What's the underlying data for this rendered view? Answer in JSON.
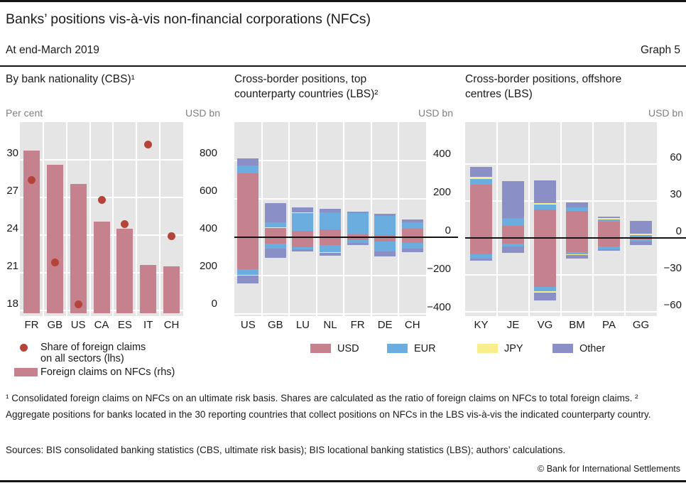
{
  "header": {
    "title": "Banks’ positions vis-à-vis non-financial corporations (NFCs)",
    "subtitle": "At end-March 2019",
    "graph_label": "Graph 5"
  },
  "colors": {
    "usd": "#c6818f",
    "eur": "#6cade0",
    "jpy": "#f8ee8d",
    "other": "#8a8fc6",
    "dot": "#b54438",
    "plot_bg": "#e5e5e5",
    "grid": "#ffffff",
    "axis_label_gray": "#7f7f7f",
    "rule": "#141414"
  },
  "panels": [
    {
      "title_lines": [
        "By bank nationality (CBS)¹",
        ""
      ],
      "unit_left": "Per cent",
      "unit_right": "USD bn"
    },
    {
      "title_lines": [
        "Cross-border positions, top",
        "counterparty countries (LBS)²"
      ],
      "unit_right": "USD bn"
    },
    {
      "title_lines": [
        "Cross-border positions, offshore",
        "centres (LBS)"
      ],
      "unit_right": "USD bn"
    }
  ],
  "chart_data": [
    {
      "type": "bar",
      "title": "By bank nationality (CBS)",
      "categories": [
        "FR",
        "GB",
        "US",
        "CA",
        "ES",
        "IT",
        "CH"
      ],
      "bar_series": {
        "name": "Foreign claims on NFCs (rhs)",
        "unit": "USD bn",
        "values": [
          850,
          775,
          670,
          470,
          435,
          240,
          235
        ]
      },
      "dot_series": {
        "name": "Share of foreign claims on all sectors (lhs)",
        "unit": "Per cent",
        "values": [
          28.4,
          21.8,
          18.5,
          26.8,
          24.9,
          31.2,
          23.9
        ]
      },
      "ylabel_left": "Per cent",
      "ylabel_right": "USD bn",
      "lhs_axis": {
        "ticks": [
          18,
          21,
          24,
          27,
          30
        ],
        "labels": [
          "18",
          "21",
          "24",
          "27",
          "30"
        ]
      },
      "rhs_axis": {
        "ticks": [
          0,
          200,
          400,
          600,
          800
        ],
        "labels": [
          "0",
          "200",
          "400",
          "600",
          "800"
        ]
      },
      "grid": true
    },
    {
      "type": "stacked-bar",
      "title": "Cross-border positions, top counterparty countries (LBS)",
      "unit": "USD bn",
      "categories": [
        "US",
        "GB",
        "LU",
        "NL",
        "FR",
        "DE",
        "CH"
      ],
      "keys": [
        "USD",
        "EUR",
        "JPY",
        "Other"
      ],
      "series_pos": {
        "USD": [
          335,
          50,
          34,
          40,
          13,
          12,
          46
        ],
        "EUR": [
          38,
          28,
          93,
          88,
          113,
          100,
          31
        ],
        "JPY": [
          0,
          0,
          3,
          0,
          0,
          0,
          0
        ],
        "Other": [
          38,
          100,
          25,
          19,
          9,
          10,
          15
        ]
      },
      "series_neg": {
        "USD": [
          -165,
          -35,
          -50,
          -41,
          -16,
          -23,
          -29
        ],
        "EUR": [
          -30,
          -26,
          -12,
          -38,
          -13,
          -50,
          -31
        ],
        "JPY": [
          -5,
          0,
          0,
          -3,
          0,
          0,
          0
        ],
        "Other": [
          -40,
          -48,
          -12,
          -13,
          -13,
          -28,
          -19
        ]
      },
      "axis": {
        "ticks": [
          -400,
          -200,
          0,
          200,
          400
        ],
        "labels": [
          "−400",
          "−200",
          "0",
          "200",
          "400"
        ]
      },
      "ylim": [
        -440,
        600
      ],
      "zero_line": true,
      "grid": true
    },
    {
      "type": "stacked-bar",
      "title": "Cross-border positions, offshore centres (LBS)",
      "unit": "USD bn",
      "categories": [
        "KY",
        "JE",
        "VG",
        "BM",
        "PA",
        "GG"
      ],
      "keys": [
        "USD",
        "EUR",
        "JPY",
        "Other"
      ],
      "series_pos": {
        "USD": [
          43,
          10,
          23,
          22,
          13,
          1
        ],
        "EUR": [
          5,
          6,
          4,
          3,
          2,
          1.5
        ],
        "JPY": [
          1.5,
          0,
          1.5,
          0,
          1,
          1
        ],
        "Other": [
          8,
          30,
          18,
          4,
          1.5,
          10.5
        ]
      },
      "series_neg": {
        "USD": [
          -13,
          -4.5,
          -40,
          -11.5,
          -7,
          -1
        ],
        "EUR": [
          -3.5,
          -2.5,
          -3.5,
          -1.5,
          -2,
          -2
        ],
        "JPY": [
          0,
          0,
          -1,
          -1,
          0,
          0
        ],
        "Other": [
          -2,
          -5,
          -6.5,
          -2.5,
          -1.5,
          -2.5
        ]
      },
      "axis": {
        "ticks": [
          -60,
          -30,
          0,
          30,
          60
        ],
        "labels": [
          "−60",
          "−30",
          "0",
          "30",
          "60"
        ]
      },
      "ylim": [
        -63,
        94
      ],
      "zero_line": true,
      "grid": true
    }
  ],
  "legend_left": {
    "dot_item": {
      "lines": [
        "Share of foreign claims",
        "on all sectors (lhs)"
      ]
    },
    "bar_item": {
      "label": "Foreign claims on NFCs (rhs)"
    }
  },
  "legend_currencies": [
    {
      "label": "USD",
      "color": "#c6818f"
    },
    {
      "label": "EUR",
      "color": "#6cade0"
    },
    {
      "label": "JPY",
      "color": "#f8ee8d"
    },
    {
      "label": "Other",
      "color": "#8a8fc6"
    }
  ],
  "footnotes": "¹  Consolidated foreign claims on NFCs on an ultimate risk basis. Shares are calculated as the ratio of foreign claims on NFCs to total foreign claims.    ²  Aggregate positions for banks located in the 30 reporting countries that collect positions on NFCs in the LBS vis-à-vis the indicated counterparty country.",
  "sources": "Sources: BIS consolidated banking statistics (CBS, ultimate risk basis); BIS locational banking statistics (LBS); authors’ calculations.",
  "copyright": "© Bank for International Settlements"
}
